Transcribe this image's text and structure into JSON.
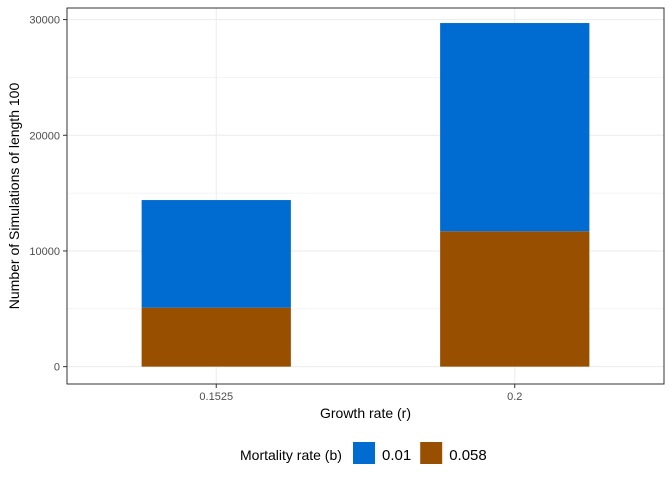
{
  "chart_data": {
    "type": "bar",
    "stacked": true,
    "categories": [
      "0.1525",
      "0.2"
    ],
    "series": [
      {
        "name": "0.058",
        "values": [
          5100,
          11700
        ],
        "color": "#994F00"
      },
      {
        "name": "0.01",
        "values": [
          9300,
          18000
        ],
        "color": "#006CD1"
      }
    ],
    "xlabel": "Growth rate (r)",
    "ylabel": "Number of Simulations of length 100",
    "ylim": [
      -1500,
      31000
    ],
    "yticks": [
      0,
      10000,
      20000,
      30000
    ],
    "grid": true,
    "legend": {
      "title": "Mortality rate (b)",
      "placement": "bottom",
      "order": [
        "0.01",
        "0.058"
      ]
    }
  }
}
